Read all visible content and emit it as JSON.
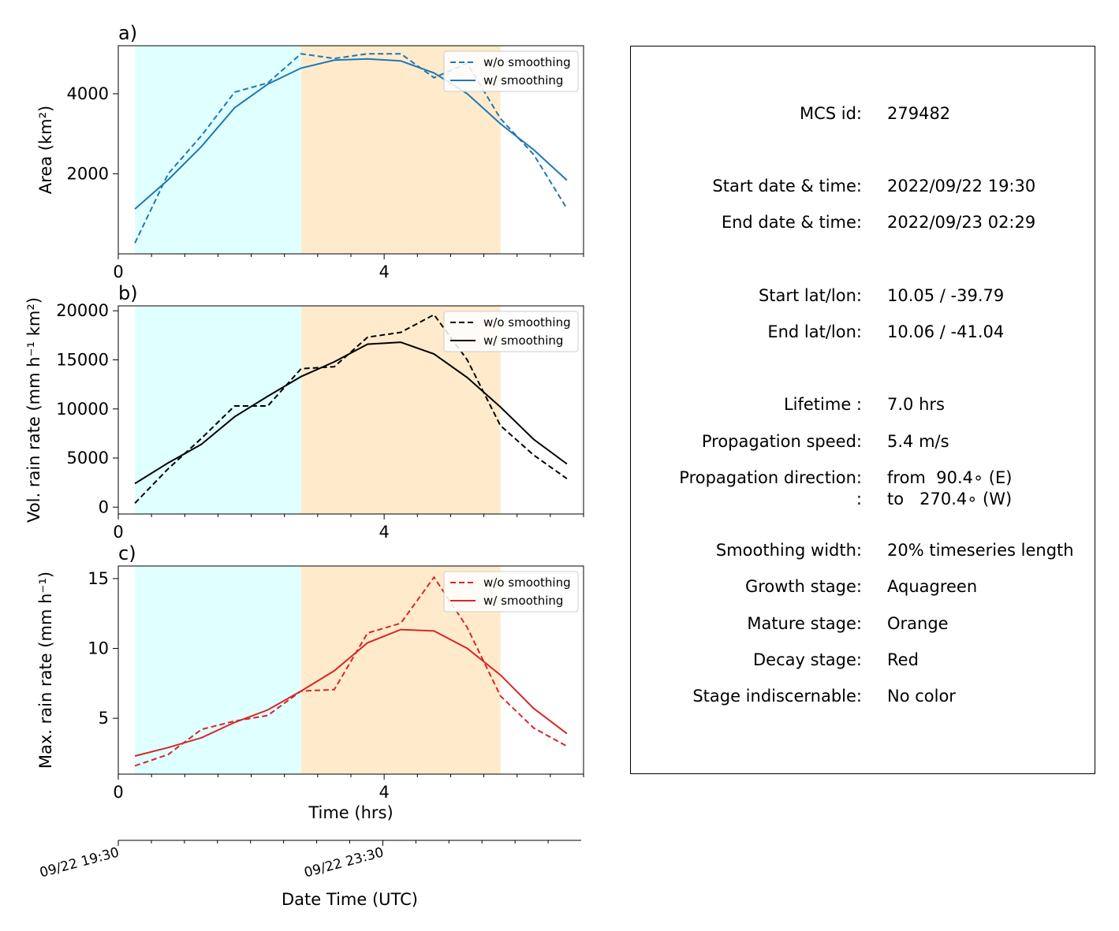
{
  "colors": {
    "growth": "#e0ffff",
    "mature": "#ffebcc",
    "area": "#1f77b4",
    "volrain": "#000000",
    "maxrain": "#d62728"
  },
  "chart_data": [
    {
      "type": "line",
      "panel_label": "a)",
      "ylabel": "Area  (km²)",
      "xlim": [
        0,
        7
      ],
      "ylim": [
        0,
        5200
      ],
      "xticks": [
        0,
        4
      ],
      "yticks": [
        2000,
        4000
      ],
      "color_key": "area",
      "stages": {
        "growth": [
          0.25,
          2.75
        ],
        "mature": [
          2.75,
          5.75
        ]
      },
      "legend": {
        "location": "top-right"
      },
      "x": [
        0.25,
        0.75,
        1.25,
        1.75,
        2.25,
        2.75,
        3.25,
        3.75,
        4.25,
        4.75,
        5.25,
        5.75,
        6.25,
        6.75
      ],
      "series": [
        {
          "name": "w/o smoothing",
          "style": "dashed",
          "values": [
            270,
            2000,
            2950,
            4040,
            4270,
            5000,
            4880,
            5000,
            5000,
            4400,
            4760,
            3380,
            2480,
            1130
          ]
        },
        {
          "name": "w/ smoothing",
          "style": "solid",
          "values": [
            1120,
            1850,
            2680,
            3650,
            4240,
            4640,
            4840,
            4870,
            4820,
            4520,
            4000,
            3250,
            2600,
            1840
          ]
        }
      ]
    },
    {
      "type": "line",
      "panel_label": "b)",
      "ylabel": "Vol. rain rate (mm h⁻¹ km²)",
      "xlim": [
        0,
        7
      ],
      "ylim": [
        -700,
        20500
      ],
      "xticks": [
        0,
        4
      ],
      "yticks": [
        0,
        5000,
        10000,
        15000,
        20000
      ],
      "color_key": "volrain",
      "stages": {
        "growth": [
          0.25,
          2.75
        ],
        "mature": [
          2.75,
          5.75
        ]
      },
      "legend": {
        "location": "top-right"
      },
      "x": [
        0.25,
        0.75,
        1.25,
        1.75,
        2.25,
        2.75,
        3.25,
        3.75,
        4.25,
        4.75,
        5.25,
        5.75,
        6.25,
        6.75
      ],
      "series": [
        {
          "name": "w/o smoothing",
          "style": "dashed",
          "values": [
            400,
            3900,
            7000,
            10300,
            10300,
            14100,
            14300,
            17300,
            17800,
            19600,
            15000,
            8300,
            5300,
            2900
          ]
        },
        {
          "name": "w/ smoothing",
          "style": "solid",
          "values": [
            2400,
            4500,
            6400,
            9200,
            11300,
            13300,
            14800,
            16600,
            16800,
            15600,
            13200,
            10200,
            6900,
            4400
          ]
        }
      ]
    },
    {
      "type": "line",
      "panel_label": "c)",
      "ylabel": "Max. rain rate  (mm h⁻¹)",
      "xlabel": "Time (hrs)",
      "xlim": [
        0,
        7
      ],
      "ylim": [
        1.0,
        15.9
      ],
      "xticks": [
        0,
        4
      ],
      "yticks": [
        5,
        10,
        15
      ],
      "color_key": "maxrain",
      "stages": {
        "growth": [
          0.25,
          2.75
        ],
        "mature": [
          2.75,
          5.75
        ]
      },
      "legend": {
        "location": "top-right"
      },
      "x": [
        0.25,
        0.75,
        1.25,
        1.75,
        2.25,
        2.75,
        3.25,
        3.75,
        4.25,
        4.75,
        5.25,
        5.75,
        6.25,
        6.75
      ],
      "series": [
        {
          "name": "w/o smoothing",
          "style": "dashed",
          "values": [
            1.6,
            2.4,
            4.2,
            4.8,
            5.2,
            6.95,
            7.05,
            11.1,
            11.8,
            15.1,
            11.5,
            6.6,
            4.3,
            3.0
          ]
        },
        {
          "name": "w/ smoothing",
          "style": "solid",
          "values": [
            2.3,
            2.9,
            3.6,
            4.7,
            5.6,
            6.95,
            8.4,
            10.4,
            11.35,
            11.25,
            10.0,
            8.1,
            5.7,
            3.9
          ]
        }
      ]
    }
  ],
  "date_axis": {
    "xlabel": "Date Time (UTC)",
    "tick_labels": [
      {
        "hour": 0,
        "text": "09/22 19:30"
      },
      {
        "hour": 4,
        "text": "09/22 23:30"
      }
    ],
    "minor_ticks_hours": [
      0.5,
      1,
      1.5,
      2,
      2.5,
      3,
      3.5,
      4.5,
      5,
      5.5,
      6,
      6.5
    ]
  },
  "info": {
    "mcs_id_label": "MCS id:",
    "mcs_id": "279482",
    "start_time_label": "Start date & time:",
    "start_time": "2022/09/22 19:30",
    "end_time_label": "End date & time:",
    "end_time": "2022/09/23 02:29",
    "start_latlon_label": "Start lat/lon:",
    "start_latlon": "10.05 / -39.79",
    "end_latlon_label": "End lat/lon:",
    "end_latlon": "10.06 / -41.04",
    "lifetime_label": "Lifetime :",
    "lifetime": "7.0 hrs",
    "speed_label": "Propagation speed:",
    "speed": "5.4 m/s",
    "direction_label": "Propagation direction:",
    "direction_from": "from  90.4∘ (E)",
    "direction_colon": ":",
    "direction_to": "to   270.4∘ (W)",
    "smoothing_label": "Smoothing width:",
    "smoothing": "20% timeseries length",
    "growth_label": "Growth stage:",
    "growth": "Aquagreen",
    "mature_label": "Mature stage:",
    "mature": "Orange",
    "decay_label": "Decay stage:",
    "decay": "Red",
    "indiscernable_label": "Stage indiscernable:",
    "indiscernable": "No color"
  }
}
